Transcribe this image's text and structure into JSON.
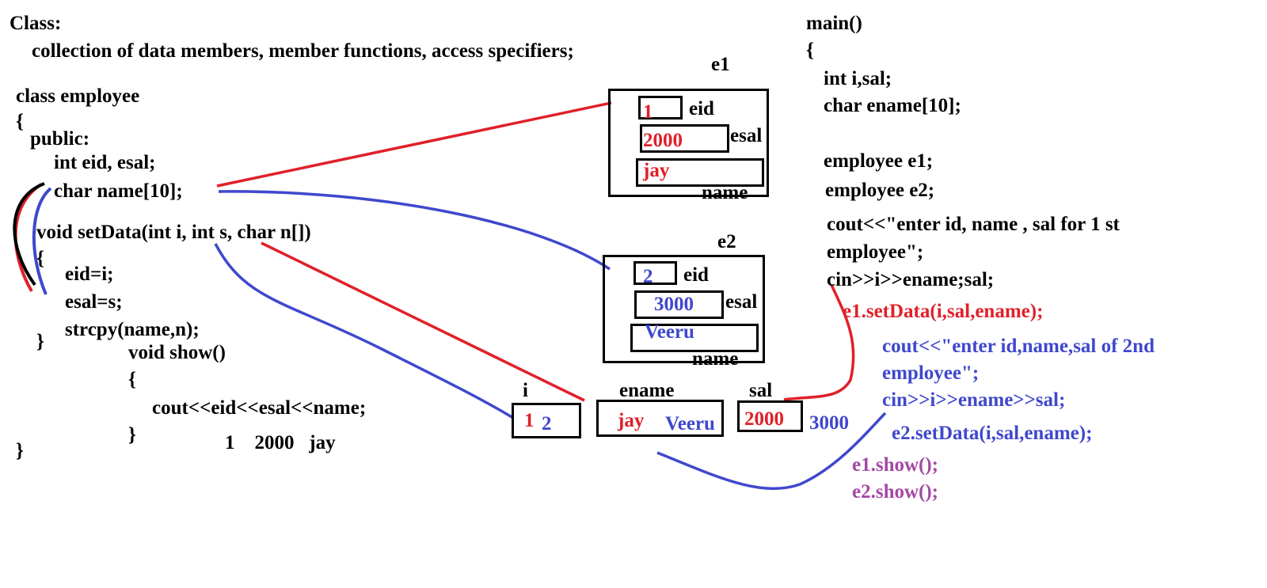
{
  "colors": {
    "red": "#e0202a",
    "blue": "#3f48cc",
    "purple": "#a349a4",
    "ink": "#000000"
  },
  "left_code": {
    "class_heading": "Class:",
    "class_definition": "collection of data members, member functions, access specifiers;",
    "class_decl": "class employee",
    "open_brace": "{",
    "public": "public:",
    "members_int": "int eid, esal;",
    "members_char": "char name[10];",
    "setdata_sig": "void setData(int i, int s, char n[])",
    "setdata_open": "{",
    "line_eid": "eid=i;",
    "line_esal": "esal=s;",
    "line_strcpy": "strcpy(name,n);",
    "setdata_close": "}",
    "show_sig": "void show()",
    "show_open": "{",
    "show_cout": "cout<<eid<<esal<<name;",
    "show_close": "}",
    "show_output": "1    2000   jay",
    "class_close": "}"
  },
  "objects": {
    "e1": {
      "label": "e1",
      "eid_value": "1",
      "eid_label": "eid",
      "esal_value": "2000",
      "esal_label": "esal",
      "name_value": "jay",
      "name_label": "name"
    },
    "e2": {
      "label": "e2",
      "eid_value": "2",
      "eid_label": "eid",
      "esal_value": "3000",
      "esal_label": "esal",
      "name_value": "Veeru",
      "name_label": "name"
    }
  },
  "locals": {
    "i_label": "i",
    "i_value_1": "1",
    "i_value_2": "2",
    "ename_label": "ename",
    "ename_value_1": "jay",
    "ename_value_2": "Veeru",
    "sal_label": "sal",
    "sal_value_1": "2000",
    "sal_value_2": "3000"
  },
  "main_code": {
    "signature": "main()",
    "open_brace": "{",
    "decl_int": "int i,sal;",
    "decl_char": "char ename[10];",
    "decl_e1": "employee e1;",
    "decl_e2": "employee e2;",
    "cout1_a": "cout<<\"enter id, name , sal for 1 st",
    "cout1_b": "employee\";",
    "cin1": "cin>>i>>ename;sal;",
    "call1": "e1.setData(i,sal,ename);",
    "cout2_a": "cout<<\"enter id,name,sal of 2nd",
    "cout2_b": "employee\";",
    "cin2": "cin>>i>>ename>>sal;",
    "call2": "e2.setData(i,sal,ename);",
    "show1": "e1.show();",
    "show2": "e2.show();"
  }
}
